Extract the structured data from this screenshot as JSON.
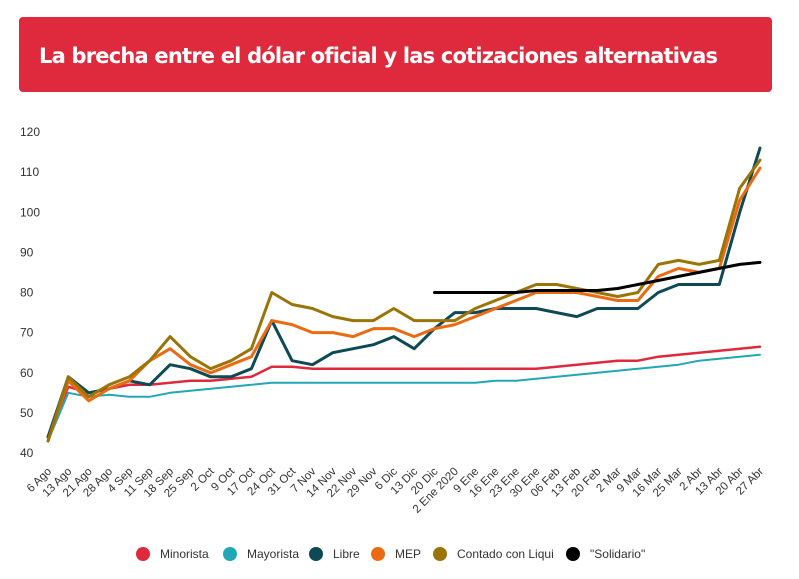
{
  "header": {
    "title": "La brecha entre el dólar oficial y las cotizaciones alternativas"
  },
  "colors": {
    "header_bg": "#de2a3c"
  },
  "chart_data": {
    "type": "line",
    "title": "La brecha entre el dólar oficial y las cotizaciones alternativas",
    "xlabel": "",
    "ylabel": "",
    "ylim": [
      40,
      120
    ],
    "yticks": [
      40,
      50,
      60,
      70,
      80,
      90,
      100,
      110,
      120
    ],
    "grid": false,
    "legend_position": "bottom",
    "categories": [
      "6 Ago",
      "13 Ago",
      "21 Ago",
      "28 Ago",
      "4 Sep",
      "11 Sep",
      "18 Sep",
      "25 Sep",
      "2 Oct",
      "9 Oct",
      "17 Oct",
      "24 Oct",
      "31 Oct",
      "7 Nov",
      "14 Nov",
      "22 Nov",
      "29 Nov",
      "6 Dic",
      "13 Dic",
      "20 Dic",
      "2 Ene 2020",
      "9 Ene",
      "16 Ene",
      "23 Ene",
      "30 Ene",
      "06 Feb",
      "13 Feb",
      "20 Feb",
      "2 Mar",
      "9 Mar",
      "16 Mar",
      "25 Mar",
      "2 Abr",
      "13 Abr",
      "20 Abr",
      "27 Abr"
    ],
    "series": [
      {
        "name": "Minorista",
        "color": "#de2a3c",
        "width": 2.5,
        "values": [
          44,
          56.5,
          55,
          56,
          57,
          57,
          57.5,
          58,
          58,
          58.5,
          59,
          61.5,
          61.5,
          61,
          61,
          61,
          61,
          61,
          61,
          61,
          61,
          61,
          61,
          61,
          61,
          61.5,
          62,
          62.5,
          63,
          63,
          64,
          64.5,
          65,
          65.5,
          66,
          66.5
        ]
      },
      {
        "name": "Mayorista",
        "color": "#21a7b5",
        "width": 2,
        "values": [
          43,
          55,
          54,
          54.5,
          54,
          54,
          55,
          55.5,
          56,
          56.5,
          57,
          57.5,
          57.5,
          57.5,
          57.5,
          57.5,
          57.5,
          57.5,
          57.5,
          57.5,
          57.5,
          57.5,
          58,
          58,
          58.5,
          59,
          59.5,
          60,
          60.5,
          61,
          61.5,
          62,
          63,
          63.5,
          64,
          64.5
        ]
      },
      {
        "name": "Libre",
        "color": "#0d4a56",
        "width": 3,
        "values": [
          44,
          59,
          55,
          56,
          58,
          57,
          62,
          61,
          59,
          59,
          61,
          73,
          63,
          62,
          65,
          66,
          67,
          69,
          66,
          71,
          75,
          75,
          76,
          76,
          76,
          75,
          74,
          76,
          76,
          76,
          80,
          82,
          82,
          82,
          100,
          116
        ]
      },
      {
        "name": "MEP",
        "color": "#ec6a12",
        "width": 3,
        "values": [
          43,
          58,
          53,
          56,
          58,
          63,
          66,
          62,
          60,
          62,
          64,
          73,
          72,
          70,
          70,
          69,
          71,
          71,
          69,
          71,
          72,
          74,
          76,
          78,
          80,
          80,
          80,
          79,
          78,
          78,
          84,
          86,
          85,
          86,
          103,
          111
        ]
      },
      {
        "name": "Contado con Liqui",
        "color": "#9b7408",
        "width": 3,
        "values": [
          43,
          59,
          54,
          57,
          59,
          63,
          69,
          64,
          61,
          63,
          66,
          80,
          77,
          76,
          74,
          73,
          73,
          76,
          73,
          73,
          73,
          76,
          78,
          80,
          82,
          82,
          81,
          80,
          79,
          80,
          87,
          88,
          87,
          88,
          106,
          113
        ]
      },
      {
        "name": "\"Solidario\"",
        "color": "#000000",
        "width": 3,
        "values": [
          null,
          null,
          null,
          null,
          null,
          null,
          null,
          null,
          null,
          null,
          null,
          null,
          null,
          null,
          null,
          null,
          null,
          null,
          null,
          80,
          80,
          80,
          80,
          80,
          80.5,
          80.5,
          80.5,
          80.5,
          81,
          82,
          83,
          84,
          85,
          86,
          87,
          87.5
        ]
      }
    ]
  }
}
